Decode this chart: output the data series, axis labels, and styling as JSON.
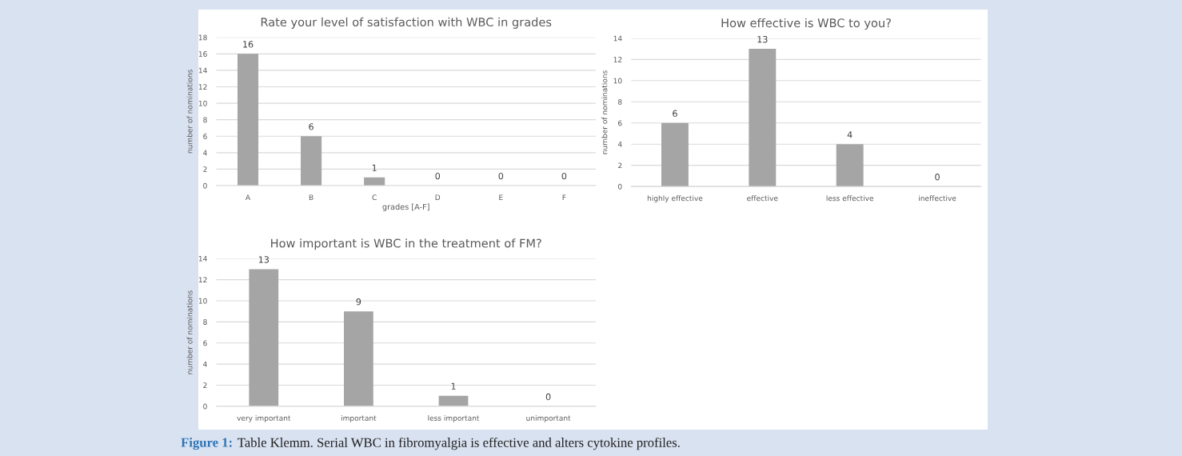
{
  "chart_data": [
    {
      "type": "bar",
      "title": "Rate your level of satisfaction with WBC in grades",
      "xlabel": "grades [A-F]",
      "ylabel": "number of nominations",
      "categories": [
        "A",
        "B",
        "C",
        "D",
        "E",
        "F"
      ],
      "values": [
        16,
        6,
        1,
        0,
        0,
        0
      ],
      "color": "#a5a5a5",
      "ylim": [
        0,
        18
      ],
      "yticks": [
        0,
        2,
        4,
        6,
        8,
        10,
        12,
        14,
        16,
        18
      ],
      "grid": "y",
      "data_labels": true,
      "legend": false
    },
    {
      "type": "bar",
      "title": "How effective is WBC to you?",
      "ylabel": "number of nominations",
      "categories": [
        "highly effective",
        "effective",
        "less effective",
        "ineffective"
      ],
      "values": [
        6,
        13,
        4,
        0
      ],
      "color": "#a5a5a5",
      "ylim": [
        0,
        14
      ],
      "yticks": [
        0,
        2,
        4,
        6,
        8,
        10,
        12,
        14
      ],
      "grid": "y",
      "data_labels": true,
      "legend": false
    },
    {
      "type": "bar",
      "title": "How important is WBC in the treatment of FM?",
      "ylabel": "number of nominations",
      "categories": [
        "very important",
        "important",
        "less important",
        "unimportant"
      ],
      "values": [
        13,
        9,
        1,
        0
      ],
      "color": "#a5a5a5",
      "ylim": [
        0,
        14
      ],
      "yticks": [
        0,
        2,
        4,
        6,
        8,
        10,
        12,
        14
      ],
      "grid": "y",
      "data_labels": true,
      "legend": false,
      "annotations": [
        "Figure 1:",
        "Table Klemm. Serial WBC in fibromyalgia is effective and alters cytokine profiles."
      ]
    }
  ]
}
